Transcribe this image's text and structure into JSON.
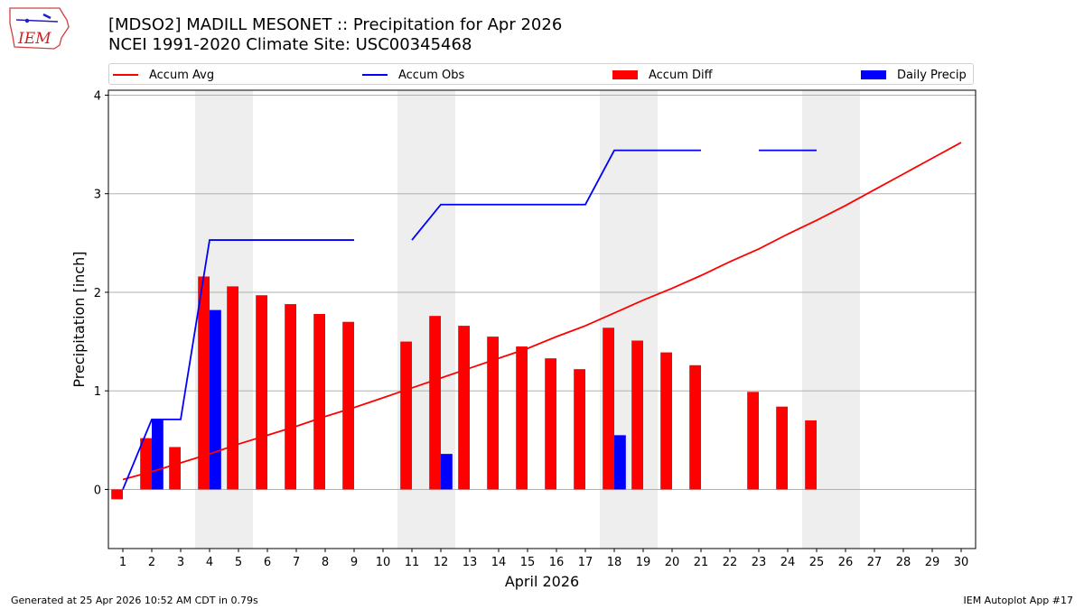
{
  "header": {
    "logo_text": "IEM",
    "title_line1": "[MDSO2] MADILL MESONET :: Precipitation for Apr 2026",
    "title_line2": "NCEI 1991-2020 Climate Site: USC00345468"
  },
  "footer": {
    "left": "Generated at 25 Apr 2026 10:52 AM CDT in 0.79s",
    "right": "IEM Autoplot App #17"
  },
  "chart_data": {
    "type": "bar",
    "title": "[MDSO2] MADILL MESONET :: Precipitation for Apr 2026",
    "xlabel": "April 2026",
    "ylabel": "Precipitation [inch]",
    "xlim": [
      0.5,
      30.5
    ],
    "ylim": [
      -0.6,
      4.05
    ],
    "yticks": [
      0,
      1,
      2,
      3,
      4
    ],
    "x": [
      1,
      2,
      3,
      4,
      5,
      6,
      7,
      8,
      9,
      10,
      11,
      12,
      13,
      14,
      15,
      16,
      17,
      18,
      19,
      20,
      21,
      22,
      23,
      24,
      25,
      26,
      27,
      28,
      29,
      30
    ],
    "weekend_days": [
      4,
      5,
      11,
      12,
      18,
      19,
      25,
      26
    ],
    "grid": "horizontal",
    "legend_position": "top",
    "colors": {
      "accum_avg": "#ff0000",
      "accum_obs": "#0000ff",
      "accum_diff": "#ff0000",
      "daily_precip": "#0000ff",
      "weekend": "#eeeeee"
    },
    "series": [
      {
        "name": "Accum Avg",
        "kind": "line",
        "values": [
          0.1,
          0.18,
          0.27,
          0.36,
          0.46,
          0.55,
          0.64,
          0.74,
          0.83,
          0.93,
          1.03,
          1.13,
          1.23,
          1.33,
          1.43,
          1.55,
          1.66,
          1.79,
          1.92,
          2.04,
          2.17,
          2.31,
          2.44,
          2.59,
          2.73,
          2.88,
          3.04,
          3.2,
          3.36,
          3.52
        ]
      },
      {
        "name": "Accum Obs",
        "kind": "line",
        "values": [
          0.0,
          0.71,
          0.71,
          2.53,
          2.53,
          2.53,
          2.53,
          2.53,
          2.53,
          null,
          2.53,
          2.89,
          2.89,
          2.89,
          2.89,
          2.89,
          2.89,
          3.44,
          3.44,
          3.44,
          3.44,
          null,
          3.44,
          3.44,
          3.44,
          null,
          null,
          null,
          null,
          null
        ]
      },
      {
        "name": "Accum Diff",
        "kind": "bar",
        "values": [
          -0.1,
          0.52,
          0.43,
          2.16,
          2.06,
          1.97,
          1.88,
          1.78,
          1.7,
          null,
          1.5,
          1.76,
          1.66,
          1.55,
          1.45,
          1.33,
          1.22,
          1.64,
          1.51,
          1.39,
          1.26,
          null,
          0.99,
          0.84,
          0.7,
          null,
          null,
          null,
          null,
          null
        ]
      },
      {
        "name": "Daily Precip",
        "kind": "bar",
        "values": [
          0,
          0.71,
          0,
          1.82,
          0,
          0,
          0,
          0,
          0,
          null,
          0,
          0.36,
          0,
          0,
          0,
          0,
          0,
          0.55,
          0,
          0,
          0,
          null,
          0,
          0,
          0,
          null,
          null,
          null,
          null,
          null
        ]
      }
    ]
  }
}
